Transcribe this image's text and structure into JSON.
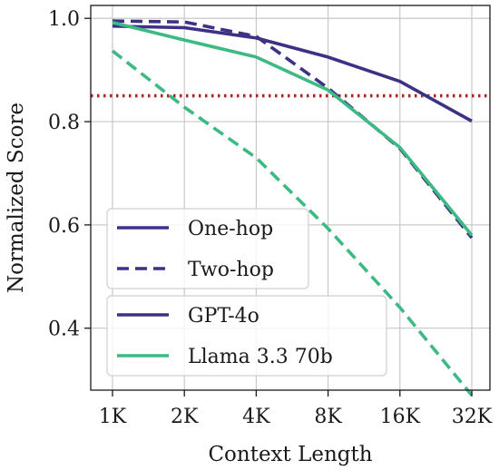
{
  "chart_data": {
    "type": "line",
    "title": "",
    "xlabel": "Context Length",
    "ylabel": "Normalized Score",
    "categories": [
      "1K",
      "2K",
      "4K",
      "8K",
      "16K",
      "32K"
    ],
    "ylim": [
      0.28,
      1.025
    ],
    "yticks": [
      "0.4",
      "0.6",
      "0.8",
      "1.0"
    ],
    "grid": true,
    "series": [
      {
        "model": "GPT-4o",
        "task": "One-hop",
        "color": "#3b3285",
        "dash": "solid",
        "values": [
          0.985,
          0.982,
          0.962,
          0.925,
          0.878,
          0.801
        ]
      },
      {
        "model": "GPT-4o",
        "task": "Two-hop",
        "color": "#3b3285",
        "dash": "dashed",
        "values": [
          0.995,
          0.993,
          0.965,
          0.865,
          0.748,
          0.575
        ]
      },
      {
        "model": "Llama 3.3 70b",
        "task": "One-hop",
        "color": "#3dba83",
        "dash": "solid",
        "values": [
          0.992,
          0.958,
          0.925,
          0.861,
          0.75,
          0.58
        ]
      },
      {
        "model": "Llama 3.3 70b",
        "task": "Two-hop",
        "color": "#3dba83",
        "dash": "dashed",
        "values": [
          0.937,
          0.828,
          0.73,
          0.593,
          0.44,
          0.27
        ]
      }
    ],
    "reference_line": {
      "value": 0.85,
      "color": "#b22222",
      "style": "dotted"
    },
    "legend_style": {
      "title": "",
      "placement": "lower-left",
      "items": [
        {
          "label": "One-hop",
          "color": "#3b3285",
          "dash": "solid"
        },
        {
          "label": "Two-hop",
          "color": "#3b3285",
          "dash": "dashed"
        }
      ]
    },
    "legend_model": {
      "title": "",
      "placement": "lower-left",
      "items": [
        {
          "label": "GPT-4o",
          "color": "#3b3285",
          "dash": "solid"
        },
        {
          "label": "Llama 3.3 70b",
          "color": "#3dba83",
          "dash": "solid"
        }
      ]
    }
  }
}
